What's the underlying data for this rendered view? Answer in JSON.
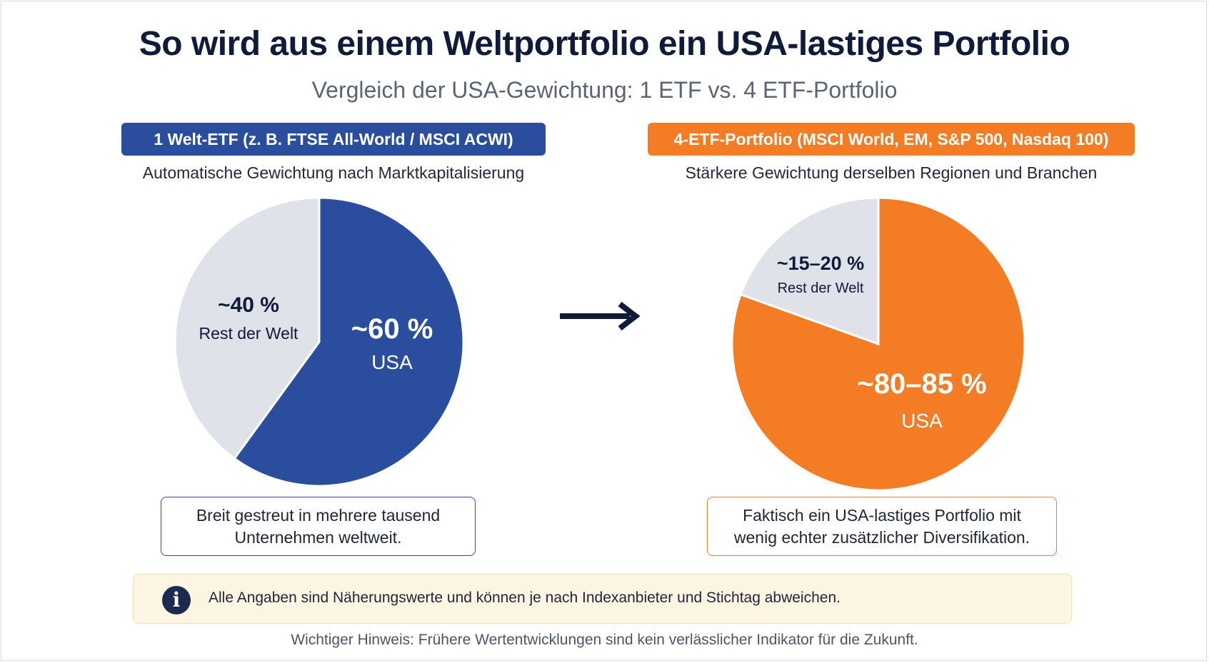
{
  "title": "So wird aus einem Weltportfolio ein USA-lastiges Portfolio",
  "subtitle": "Vergleich der USA-Gewichtung: 1 ETF vs. 4 ETF-Portfolio",
  "left": {
    "badge": "1 Welt-ETF (z. B. FTSE All-World / MSCI ACWI)",
    "caption": "Automatische Gewichtung nach Marktkapitalisierung",
    "note_line1": "Breit gestreut in mehrere tausend",
    "note_line2": "Unternehmen weltweit."
  },
  "right": {
    "badge": "4-ETF-Portfolio (MSCI World, EM, S&P 500, Nasdaq 100)",
    "caption": "Stärkere Gewichtung derselben Regionen und Branchen",
    "note_line1": "Faktisch ein USA-lastiges Portfolio mit",
    "note_line2": "wenig echter zusätzlicher Diversifikation."
  },
  "info": {
    "icon": "info-icon",
    "text": "Alle Angaben sind Näherungswerte und können je nach Indexanbieter und Stichtag abweichen."
  },
  "footer": "Wichtiger Hinweis: Frühere Wertentwicklungen sind kein verlässlicher Indikator für die Zukunft.",
  "colors": {
    "blue": "#2b4d9e",
    "orange": "#f47c24",
    "grey": "#dfe2e8",
    "navy": "#101b3a"
  },
  "chart_data": [
    {
      "type": "pie",
      "slices": [
        {
          "label": "USA",
          "value_label": "~60 %",
          "value": 60,
          "color": "#2b4d9e"
        },
        {
          "label": "Rest der Welt",
          "value_label": "~40 %",
          "value": 40,
          "color": "#dfe2e8"
        }
      ]
    },
    {
      "type": "pie",
      "slices": [
        {
          "label": "USA",
          "value_label": "~80–85 %",
          "value": 80.5,
          "color": "#f47c24"
        },
        {
          "label": "Rest der Welt",
          "value_label": "~15–20 %",
          "value": 19.5,
          "color": "#dfe2e8"
        }
      ]
    }
  ]
}
